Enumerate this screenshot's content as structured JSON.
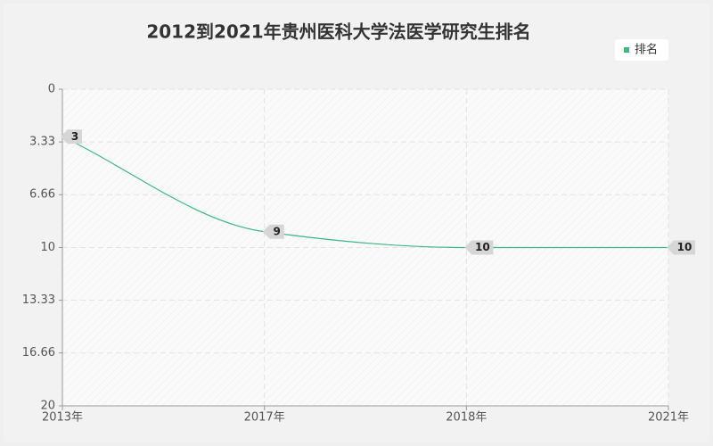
{
  "chart_data": {
    "type": "line",
    "title": "2012到2021年贵州医科大学法医学研究生排名",
    "categories": [
      "2013年",
      "2017年",
      "2018年",
      "2021年"
    ],
    "series": [
      {
        "name": "排名",
        "color": "#3cb883",
        "values": [
          3,
          9,
          10,
          10
        ]
      }
    ],
    "ylim": [
      0,
      20
    ],
    "y_inverted": true,
    "yticks": [
      0,
      3.33,
      6.66,
      10,
      13.33,
      16.66,
      20
    ],
    "grid": true,
    "legend": "top-right",
    "smooth": true
  }
}
